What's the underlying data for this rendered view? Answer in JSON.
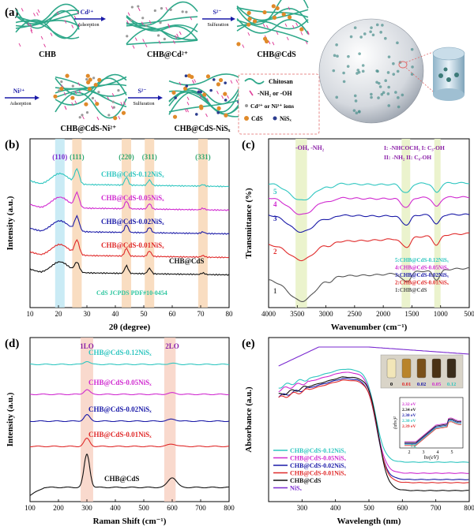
{
  "panel_a": {
    "label": "(a)",
    "labels": {
      "chb": "CHB",
      "chb_cd": "CHB@Cd²⁺",
      "chb_cds": "CHB@CdS",
      "chb_cds_ni": "CHB@CdS-Ni²⁺",
      "chb_cds_nis": "CHB@CdS-NiSₓ"
    },
    "arrows": [
      {
        "top": "Cd²⁺",
        "bottom": "Adsorption"
      },
      {
        "top": "S²⁻",
        "bottom": "Sulfuration"
      },
      {
        "top": "Ni²⁺",
        "bottom": "Adsorption"
      },
      {
        "top": "S²⁻",
        "bottom": "Sulfuration"
      }
    ],
    "legend": {
      "chitosan": "Chitosan",
      "groups": "-NH₂ or -OH",
      "ions": "Cd²⁺ or Ni²⁺ ions",
      "cds": "CdS",
      "nis": "NiSₓ"
    },
    "colors": {
      "fiber": "#2fa88a",
      "cds": "#e08a2a",
      "nis": "#2c3d8f",
      "ions": "#999999",
      "groups": "#e0409a"
    }
  },
  "chart_data": [
    {
      "panel": "(b)",
      "type": "line",
      "xlabel": "2θ (degree)",
      "ylabel": "Intensity (a.u.)",
      "xlim": [
        10,
        80
      ],
      "xticks": [
        10,
        20,
        30,
        40,
        50,
        60,
        70,
        80
      ],
      "peaks": [
        {
          "label": "(110)",
          "x": 20.5
        },
        {
          "label": "(111)",
          "x": 26.5
        },
        {
          "label": "(220)",
          "x": 43.9
        },
        {
          "label": "(311)",
          "x": 52
        },
        {
          "label": "(331)",
          "x": 70.8
        }
      ],
      "series": [
        {
          "name": "CHB@CdS-0.12NiSₓ",
          "color": "#2fc6c0"
        },
        {
          "name": "CHB@CdS-0.05NiSₓ",
          "color": "#d02ad0"
        },
        {
          "name": "CHB@CdS-0.02NiSₓ",
          "color": "#1a1aa8"
        },
        {
          "name": "CHB@CdS-0.01NiSₓ",
          "color": "#e02a2a"
        },
        {
          "name": "CHB@CdS",
          "color": "#111111"
        }
      ],
      "annotation": "CdS JCPDS PDF#10-0454"
    },
    {
      "panel": "(c)",
      "type": "line",
      "xlabel": "Wavenumber (cm⁻¹)",
      "ylabel": "Transmittance (%)",
      "xlim": [
        4000,
        500
      ],
      "xticks": [
        4000,
        3500,
        3000,
        2500,
        2000,
        1500,
        1000,
        500
      ],
      "annotations": [
        "-OH, -NH₂",
        "I: -NHCOCH₃  I: C₃-OH",
        "II: -NH₂    II: C₆-OH"
      ],
      "series": [
        {
          "name": "5:CHB@CdS-0.12NiSₓ",
          "color": "#2fc6c0",
          "num": "5"
        },
        {
          "name": "4:CHB@CdS-0.05NiSₓ",
          "color": "#d02ad0",
          "num": "4"
        },
        {
          "name": "3:CHB@CdS-0.02NiSₓ",
          "color": "#1a1aa8",
          "num": "3"
        },
        {
          "name": "2:CHB@CdS-0.01NiSₓ",
          "color": "#e02a2a",
          "num": "2"
        },
        {
          "name": "1:CHB@CdS",
          "color": "#555555",
          "num": "1"
        }
      ]
    },
    {
      "panel": "(d)",
      "type": "line",
      "xlabel": "Raman Shift (cm⁻¹)",
      "ylabel": "Intensity (a.u.)",
      "xlim": [
        100,
        800
      ],
      "xticks": [
        100,
        200,
        300,
        400,
        500,
        600,
        700,
        800
      ],
      "peaks": [
        {
          "label": "1LO",
          "x": 300
        },
        {
          "label": "2LO",
          "x": 600
        }
      ],
      "series": [
        {
          "name": "CHB@CdS-0.12NiSₓ",
          "color": "#2fc6c0"
        },
        {
          "name": "CHB@CdS-0.05NiSₓ",
          "color": "#d02ad0"
        },
        {
          "name": "CHB@CdS-0.02NiSₓ",
          "color": "#1a1aa8"
        },
        {
          "name": "CHB@CdS-0.01NiSₓ",
          "color": "#e02a2a"
        },
        {
          "name": "CHB@CdS",
          "color": "#111111"
        }
      ]
    },
    {
      "panel": "(e)",
      "type": "line",
      "xlabel": "Wavelength (nm)",
      "ylabel": "Absorbance (a.u.)",
      "xlim": [
        200,
        800
      ],
      "xticks": [
        300,
        400,
        500,
        600,
        700,
        800
      ],
      "series": [
        {
          "name": "CHB@CdS-0.12NiSₓ",
          "color": "#2fc6c0"
        },
        {
          "name": "CHB@CdS-0.05NiSₓ",
          "color": "#d02ad0"
        },
        {
          "name": "CHB@CdS-0.02NiSₓ",
          "color": "#1a1aa8"
        },
        {
          "name": "CHB@CdS-0.01NiSₓ",
          "color": "#e02a2a"
        },
        {
          "name": "CHB@CdS",
          "color": "#111111"
        },
        {
          "name": "NiSₓ",
          "color": "#7a2ad0"
        }
      ],
      "vial_labels": [
        "0",
        "0.01",
        "0.02",
        "0.05",
        "0.12"
      ],
      "inset": {
        "xlabel": "hv(eV)",
        "ylabel": "(αhv)²",
        "xticks": [
          "2",
          "3",
          "4",
          "5"
        ],
        "eg_label": "Eg",
        "gaps": [
          {
            "v": "2.32 eV",
            "color": "#d02ad0"
          },
          {
            "v": "2.34 eV",
            "color": "#111111"
          },
          {
            "v": "2.30 eV",
            "color": "#1a1aa8"
          },
          {
            "v": "2.30 eV",
            "color": "#2fc6c0"
          },
          {
            "v": "2.39 eV",
            "color": "#e02a2a"
          }
        ]
      }
    }
  ]
}
